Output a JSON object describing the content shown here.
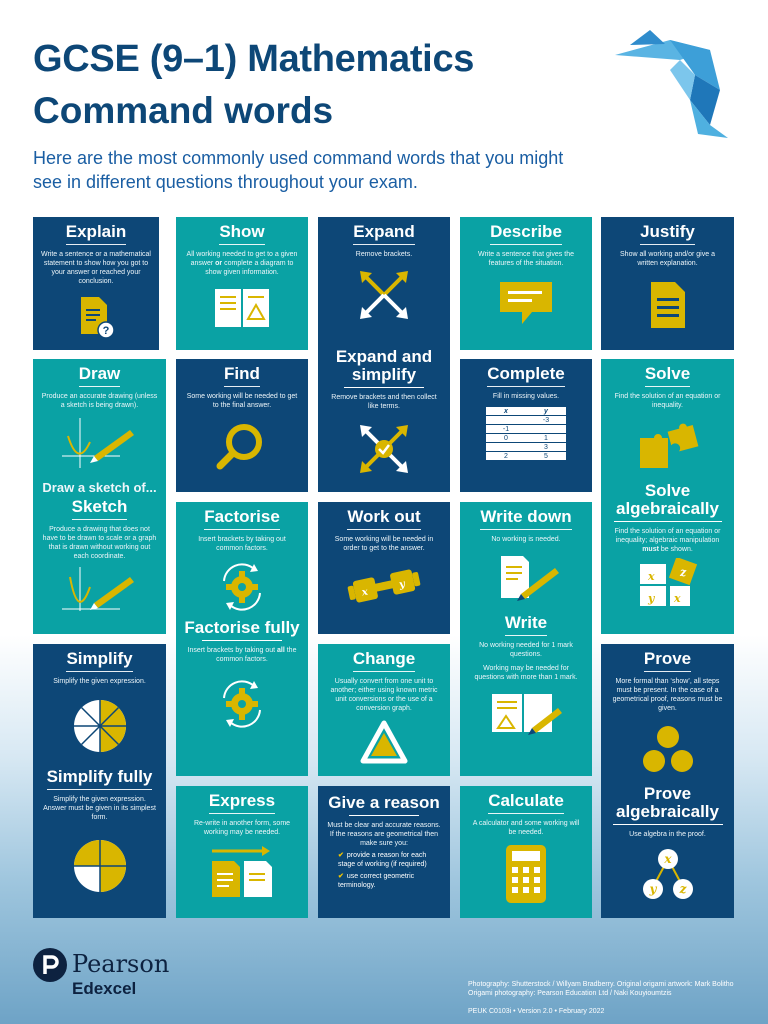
{
  "header": {
    "title": "GCSE (9–1) Mathematics",
    "subtitle": "Command words",
    "intro": "Here are the most commonly used command words that you might see in different questions throughout your exam."
  },
  "cards": {
    "explain": {
      "title": "Explain",
      "desc": "Write a sentence or a mathematical statement to show how you got to your answer or reached your conclusion."
    },
    "show": {
      "title": "Show",
      "desc_pre": "All working needed to get to a given answer ",
      "desc_em": "or",
      "desc_post": " complete a diagram to show given information."
    },
    "expand": {
      "title": "Expand",
      "desc": "Remove brackets."
    },
    "describe": {
      "title": "Describe",
      "desc": "Write a sentence that gives the features of the situation."
    },
    "justify": {
      "title": "Justify",
      "desc": "Show all working and/or give a written explanation."
    },
    "draw": {
      "title": "Draw",
      "desc": "Produce an accurate drawing (unless a sketch is being drawn)."
    },
    "find": {
      "title": "Find",
      "desc": "Some working will be needed to get to the final answer."
    },
    "expand_simplify": {
      "title": "Expand and simplify",
      "desc": "Remove brackets and then collect like terms."
    },
    "complete": {
      "title": "Complete",
      "desc": "Fill in missing values.",
      "table_header": [
        "x",
        "y"
      ],
      "table_rows": [
        [
          "",
          "-3"
        ],
        [
          "-1",
          ""
        ],
        [
          "0",
          "1"
        ],
        [
          "",
          "3"
        ],
        [
          "2",
          "5"
        ]
      ]
    },
    "solve": {
      "title": "Solve",
      "desc": "Find the solution of an equation or inequality."
    },
    "sketch": {
      "pre": "Draw a sketch of...",
      "title": "Sketch",
      "desc": "Produce a drawing that does not have to be drawn to scale or a graph that is drawn without working out each coordinate."
    },
    "factorise": {
      "title": "Factorise",
      "desc": "Insert brackets by taking out common factors."
    },
    "work_out": {
      "title": "Work out",
      "desc": "Some working will be needed in order to get to the answer."
    },
    "write_down": {
      "title": "Write down",
      "desc": "No working is needed."
    },
    "solve_alg": {
      "title": "Solve algebraically",
      "desc_pre": "Find the solution of an equation or inequality; algebraic manipulation ",
      "desc_em": "must",
      "desc_post": " be shown."
    },
    "factorise_fully": {
      "title": "Factorise fully",
      "desc_pre": "Insert brackets by taking out ",
      "desc_em": "all",
      "desc_post": " the common factors."
    },
    "simplify": {
      "title": "Simplify",
      "desc": "Simplify the given expression."
    },
    "change": {
      "title": "Change",
      "desc": "Usually convert from one unit to another; either using known metric unit conversions or the use of a conversion graph."
    },
    "write": {
      "title": "Write",
      "desc": "No working needed for 1 mark questions.",
      "desc2": "Working may be needed for questions with more than 1 mark."
    },
    "prove": {
      "title": "Prove",
      "desc": "More formal than ‘show’, all steps must be present. In the case of a geometrical proof, reasons must be given."
    },
    "simplify_fully": {
      "title": "Simplify fully",
      "desc": "Simplify the given expression. Answer must be given in its simplest form."
    },
    "express": {
      "title": "Express",
      "desc": "Re-write in another form, some working may be needed."
    },
    "give_reason": {
      "title": "Give a reason",
      "desc": "Must be clear and accurate reasons. If the reasons are geometrical then make sure you:",
      "bullets": [
        "provide a reason for each stage of working (if required)",
        "use correct geometric terminology."
      ]
    },
    "calculate": {
      "title": "Calculate",
      "desc": "A calculator and some working will be needed."
    },
    "prove_alg": {
      "title": "Prove algebraically",
      "desc": "Use algebra in the proof."
    }
  },
  "icon_letters": {
    "x": "x",
    "y": "y",
    "z": "z"
  },
  "footer": {
    "brand": "Pearson",
    "sub_brand": "Edexcel",
    "credit": "Photography: Shutterstock / Willyam Bradberry. Original origami artwork: Mark Bolitho Origami photography: Pearson Education Ltd / Naki Kouyioumtzis",
    "doc_ref": "PEUK C0103i • Version 2.0 • February 2022"
  },
  "colors": {
    "navy": "#0d4777",
    "teal": "#0aa2a4",
    "yellow": "#d9b600",
    "title": "#0d4777"
  }
}
